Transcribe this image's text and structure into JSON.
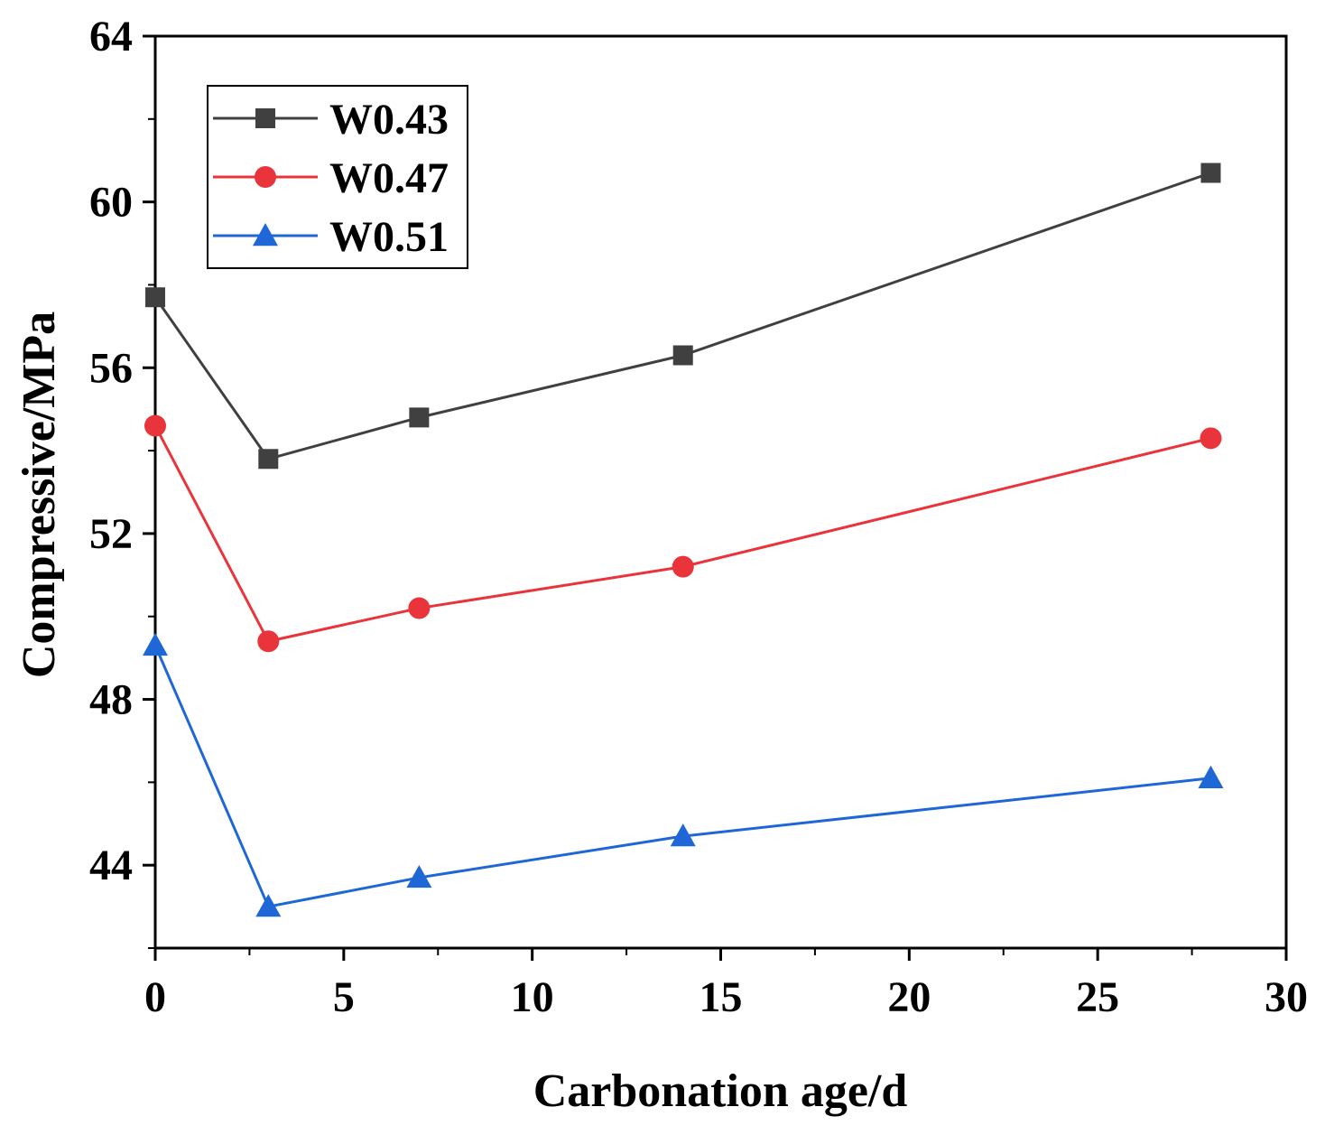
{
  "chart_data": {
    "type": "line",
    "xlabel": "Carbonation age/d",
    "ylabel": "Compressive/MPa",
    "xlim": [
      0,
      30
    ],
    "ylim": [
      42,
      64
    ],
    "x_ticks": [
      0,
      5,
      10,
      15,
      20,
      25,
      30
    ],
    "y_ticks": [
      44,
      48,
      52,
      56,
      60,
      64
    ],
    "grid": false,
    "legend_position": "top-left",
    "x": [
      0,
      3,
      7,
      14,
      28
    ],
    "series": [
      {
        "name": "W0.43",
        "marker": "square",
        "color": "#404040",
        "values": [
          57.7,
          53.8,
          54.8,
          56.3,
          60.7
        ]
      },
      {
        "name": "W0.47",
        "marker": "circle",
        "color": "#e8343a",
        "values": [
          54.6,
          49.4,
          50.2,
          51.2,
          54.3
        ]
      },
      {
        "name": "W0.51",
        "marker": "triangle",
        "color": "#1f66d6",
        "values": [
          49.3,
          43.0,
          43.7,
          44.7,
          46.1
        ]
      }
    ]
  }
}
